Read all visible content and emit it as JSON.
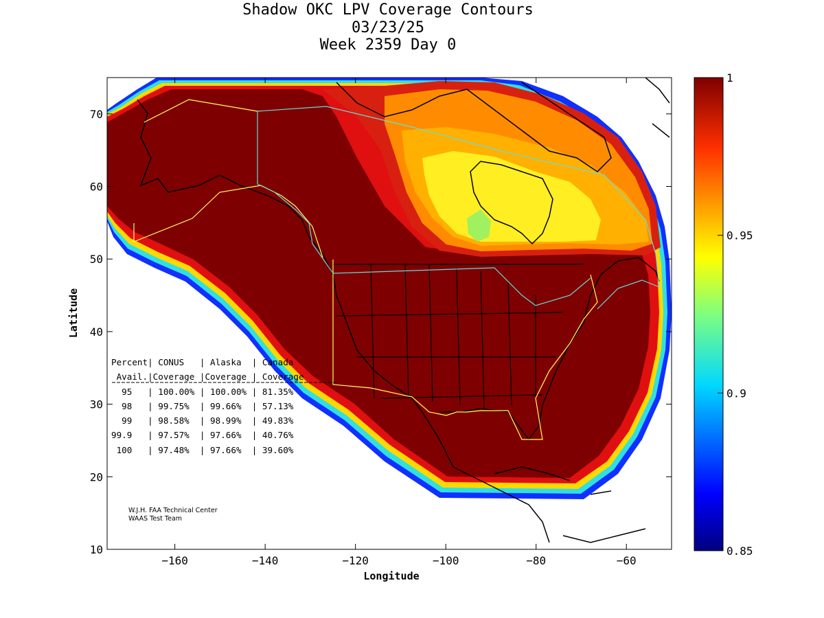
{
  "title_lines": [
    "Shadow OKC LPV Coverage Contours",
    "03/23/25",
    "Week 2359 Day 0"
  ],
  "chart_data": {
    "type": "heatmap",
    "title": "Shadow OKC LPV Coverage Contours",
    "xlabel": "Longitude",
    "ylabel": "Latitude",
    "xlim": [
      -175,
      -50
    ],
    "ylim": [
      10,
      75
    ],
    "xticks": [
      -160,
      -140,
      -120,
      -100,
      -80,
      -60
    ],
    "yticks": [
      10,
      20,
      30,
      40,
      50,
      60,
      70
    ],
    "colorbar": {
      "range": [
        0.85,
        1
      ],
      "ticks": [
        "1",
        "0.95",
        "0.9",
        "0.85"
      ],
      "colormap": "jet"
    },
    "table": {
      "header1": [
        "Percent",
        "CONUS",
        "Alaska",
        "Canada"
      ],
      "header2": [
        "Avail.",
        "Coverage",
        "Coverage",
        "Coverage"
      ],
      "rows": [
        [
          "95",
          "100.00%",
          "100.00%",
          "81.35%"
        ],
        [
          "98",
          "99.75%",
          "99.66%",
          "57.13%"
        ],
        [
          "99",
          "98.58%",
          "98.99%",
          "49.83%"
        ],
        [
          "99.9",
          "97.57%",
          "97.66%",
          "40.76%"
        ],
        [
          "100",
          "97.48%",
          "97.66%",
          "39.60%"
        ]
      ]
    }
  },
  "credit_lines": [
    "W.J.H. FAA Technical Center",
    "WAAS Test Team"
  ],
  "colors": {
    "dark_red": "#800000",
    "red": "#c80000",
    "orange": "#ff9900",
    "yellow": "#ffff33",
    "cyan": "#22e0e0",
    "blue": "#0000c0",
    "border_yellow": "#ffff66",
    "border_cyan": "#66dddd"
  }
}
